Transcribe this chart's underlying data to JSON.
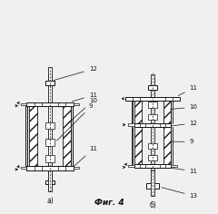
{
  "bg_color": "#f0f0f0",
  "fig_label": "Фиг. 4",
  "label_a": "а)",
  "label_b": "б)",
  "text_color": "#111111",
  "line_color": "#111111"
}
